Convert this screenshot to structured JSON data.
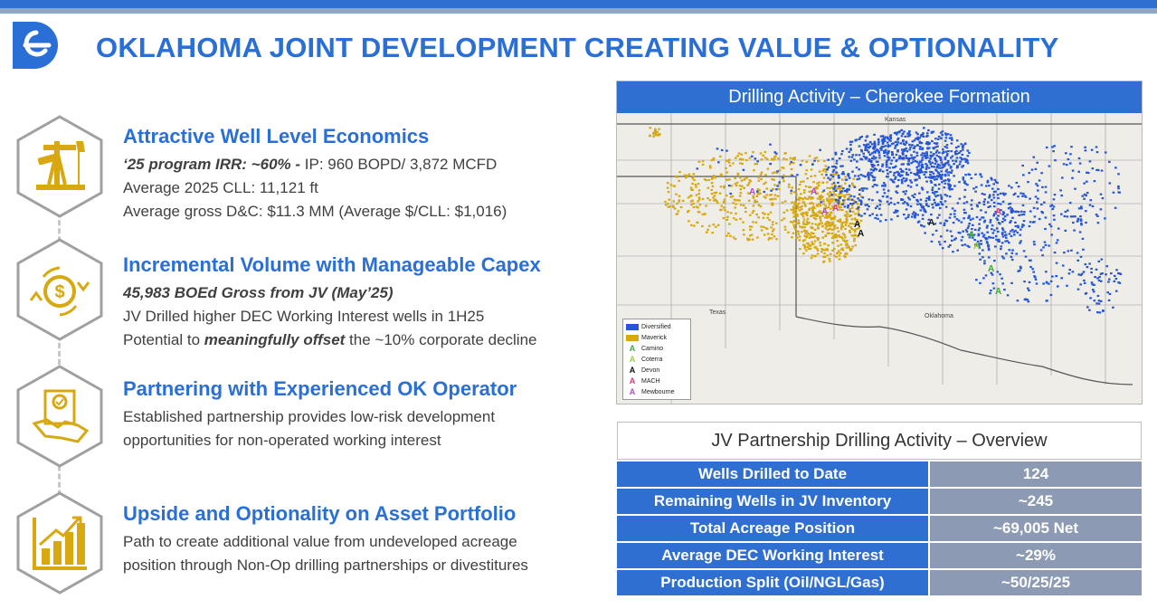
{
  "title": "OKLAHOMA JOINT DEVELOPMENT CREATING VALUE & OPTIONALITY",
  "colors": {
    "brand_blue": "#2a6fd6",
    "gold": "#d7a80f",
    "table_value_bg": "#8c9ab4"
  },
  "icons": [
    "oil-pump-icon",
    "dollar-cycle-icon",
    "handshake-contract-icon",
    "growth-chart-icon"
  ],
  "sections": [
    {
      "heading": "Attractive Well Level Economics",
      "line1_bold": "‘25 program IRR: ~60% -",
      "line1_rest": " IP: 960 BOPD/ 3,872 MCFD",
      "line2": "Average 2025 CLL: 11,121 ft",
      "line3": "Average gross D&C: $11.3 MM (Average $/CLL: $1,016)"
    },
    {
      "heading": "Incremental Volume with Manageable Capex",
      "line1": "45,983 BOEd Gross from JV (May’25)",
      "line2": "JV Drilled higher DEC Working Interest wells in 1H25",
      "line3_pre": "Potential to ",
      "line3_em": "meaningfully offset",
      "line3_post": " the ~10% corporate decline"
    },
    {
      "heading": "Partnering with Experienced OK Operator",
      "line1": "Established partnership provides low-risk development",
      "line2": "opportunities for non-operated working interest"
    },
    {
      "heading": "Upside and Optionality on Asset Portfolio",
      "line1": "Path to create additional value from undeveloped acreage",
      "line2": "position through Non-Op drilling partnerships or divestitures"
    }
  ],
  "map": {
    "title": "Drilling Activity – Cherokee Formation",
    "labels": {
      "kansas": "Kansas",
      "texas": "Texas",
      "oklahoma": "Oklahoma"
    },
    "legend": [
      {
        "label": "Diversified",
        "kind": "swatch",
        "color": "#2456d6"
      },
      {
        "label": "Maverick",
        "kind": "swatch",
        "color": "#d7a80f"
      },
      {
        "label": "Camino",
        "kind": "rig",
        "color": "#3aa83a"
      },
      {
        "label": "Coterra",
        "kind": "rig",
        "color": "#9ad040"
      },
      {
        "label": "Devon",
        "kind": "rig",
        "color": "#111111"
      },
      {
        "label": "MACH",
        "kind": "rig",
        "color": "#e0337f"
      },
      {
        "label": "Mewbourne",
        "kind": "rig",
        "color": "#b04cc8"
      }
    ]
  },
  "overview": {
    "title": "JV Partnership Drilling Activity – Overview",
    "rows": [
      {
        "label": "Wells Drilled to Date",
        "value": "124"
      },
      {
        "label": "Remaining Wells in JV Inventory",
        "value": "~245"
      },
      {
        "label": "Total Acreage Position",
        "value": "~69,005 Net"
      },
      {
        "label": "Average DEC Working Interest",
        "value": "~29%"
      },
      {
        "label": "Production Split (Oil/NGL/Gas)",
        "value": "~50/25/25"
      }
    ]
  }
}
